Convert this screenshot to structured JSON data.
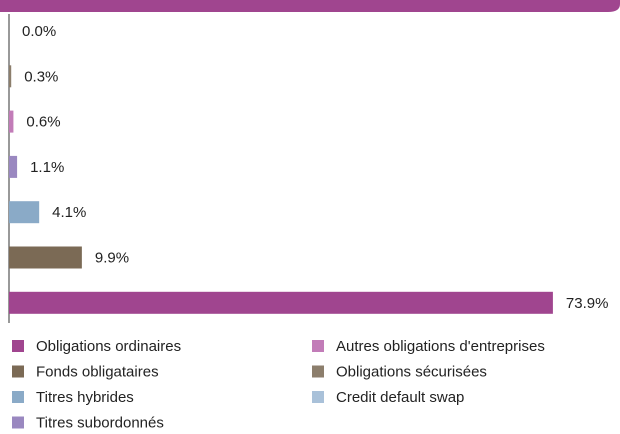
{
  "chart_data": {
    "type": "bar",
    "series": [
      {
        "name": "Credit default swap",
        "color": "#a9c1d9",
        "values": [
          0.0
        ],
        "value_labels": [
          "0.0%"
        ]
      },
      {
        "name": "Obligations sécurisées",
        "color": "#8c7e6c",
        "values": [
          0.3
        ],
        "value_labels": [
          "0.3%"
        ]
      },
      {
        "name": "Autres obligations d'entreprises",
        "color": "#c27cb8",
        "values": [
          0.6
        ],
        "value_labels": [
          "0.6%"
        ]
      },
      {
        "name": "Titres subordonnés",
        "color": "#9a88c0",
        "values": [
          1.1
        ],
        "value_labels": [
          "1.1%"
        ]
      },
      {
        "name": "Titres hybrides",
        "color": "#8aaac7",
        "values": [
          4.1
        ],
        "value_labels": [
          "4.1%"
        ]
      },
      {
        "name": "Fonds obligataires",
        "color": "#7b6a55",
        "values": [
          9.9
        ],
        "value_labels": [
          "9.9%"
        ]
      },
      {
        "name": "Obligations ordinaires",
        "color": "#a0458f",
        "values": [
          73.9
        ],
        "value_labels": [
          "73.9%"
        ]
      }
    ]
  }
}
